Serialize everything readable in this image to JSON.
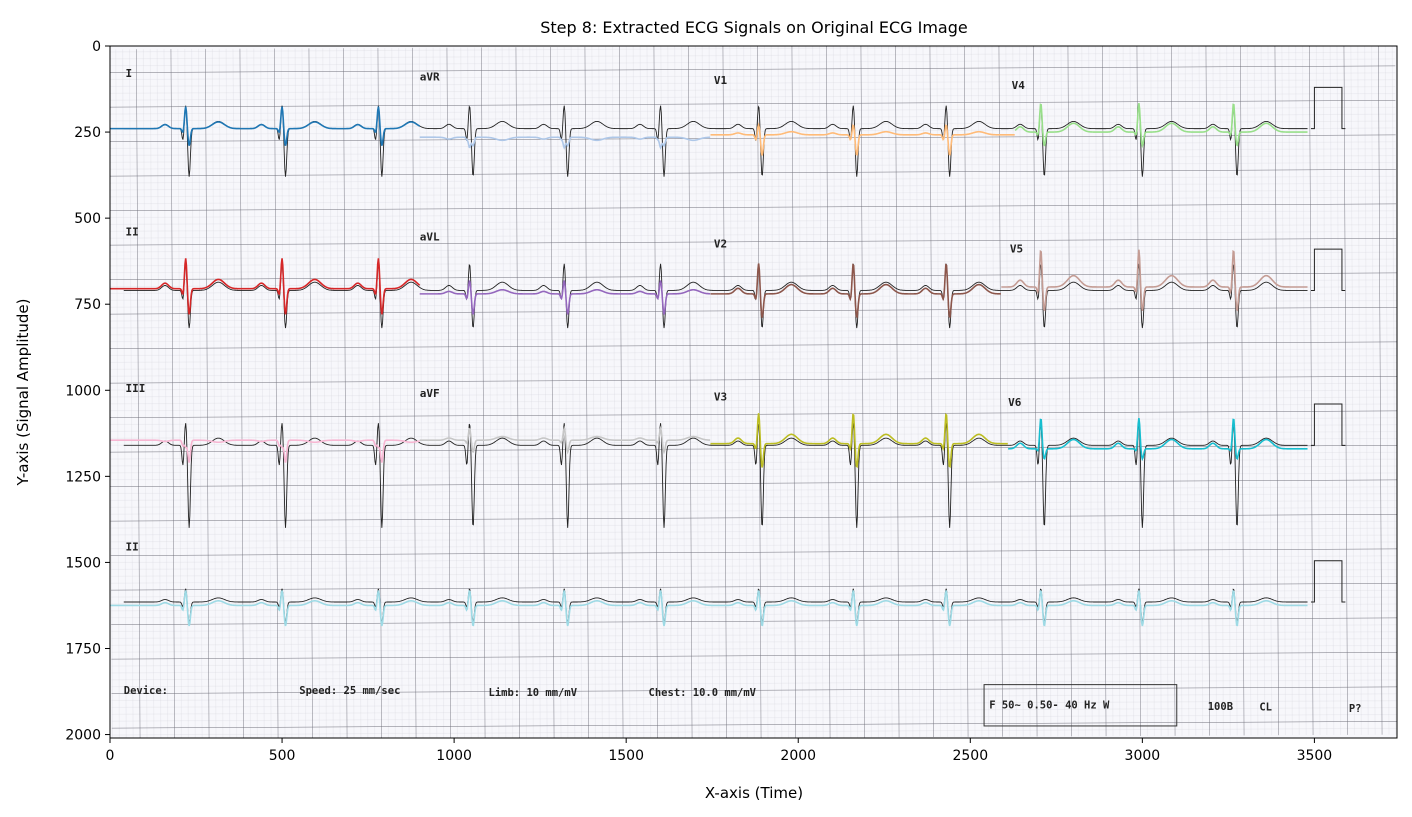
{
  "chart_data": {
    "type": "line",
    "title": "Step 8: Extracted ECG Signals on Original ECG Image",
    "xlabel": "X-axis (Time)",
    "ylabel": "Y-axis (Signal Amplitude)",
    "xlim": [
      0,
      3740
    ],
    "ylim": [
      2010,
      0
    ],
    "y_inverted": true,
    "xticks": [
      0,
      500,
      1000,
      1500,
      2000,
      2500,
      3000,
      3500
    ],
    "yticks": [
      0,
      250,
      500,
      750,
      1000,
      1250,
      1500,
      1750,
      2000
    ],
    "grid": false,
    "background_image": "scanned-ecg-paper",
    "lead_labels": [
      {
        "text": "I",
        "x": 45,
        "y": 90
      },
      {
        "text": "aVR",
        "x": 900,
        "y": 100
      },
      {
        "text": "V1",
        "x": 1755,
        "y": 110
      },
      {
        "text": "V4",
        "x": 2620,
        "y": 125
      },
      {
        "text": "II",
        "x": 45,
        "y": 550
      },
      {
        "text": "aVL",
        "x": 900,
        "y": 565
      },
      {
        "text": "V2",
        "x": 1755,
        "y": 585
      },
      {
        "text": "V5",
        "x": 2615,
        "y": 600
      },
      {
        "text": "III",
        "x": 45,
        "y": 1005
      },
      {
        "text": "aVF",
        "x": 900,
        "y": 1020
      },
      {
        "text": "V3",
        "x": 1755,
        "y": 1030
      },
      {
        "text": "V6",
        "x": 2610,
        "y": 1045
      },
      {
        "text": "II",
        "x": 45,
        "y": 1465
      }
    ],
    "footer_text": [
      {
        "text": "Device:",
        "x": 40,
        "y": 1882
      },
      {
        "text": "Speed: 25 mm/sec",
        "x": 550,
        "y": 1882
      },
      {
        "text": "Limb: 10 mm/mV",
        "x": 1100,
        "y": 1888
      },
      {
        "text": "Chest: 10.0 mm/mV",
        "x": 1565,
        "y": 1888
      },
      {
        "text": "F 50~ 0.50- 40 Hz W",
        "x": 2555,
        "y": 1925
      },
      {
        "text": "100B",
        "x": 3190,
        "y": 1928
      },
      {
        "text": "CL",
        "x": 3340,
        "y": 1930
      },
      {
        "text": "P?",
        "x": 3600,
        "y": 1935
      }
    ],
    "series": [
      {
        "color": "#1f77b4",
        "x_range": [
          0,
          900
        ],
        "baseline": 240,
        "beats": [
          220,
          500,
          780
        ],
        "r_amp": 65,
        "s_amp": 50
      },
      {
        "color": "#aec7e8",
        "x_range": [
          900,
          1745
        ],
        "baseline": 265,
        "beats": [
          1045,
          1320,
          1600
        ],
        "r_amp": -30,
        "s_amp": 25
      },
      {
        "color": "#ffbb78",
        "x_range": [
          1745,
          2630
        ],
        "baseline": 258,
        "beats": [
          1885,
          2160,
          2430
        ],
        "r_amp": 30,
        "s_amp": 60
      },
      {
        "color": "#98df8a",
        "x_range": [
          2630,
          3480
        ],
        "baseline": 250,
        "beats": [
          2705,
          2990,
          3265
        ],
        "r_amp": 85,
        "s_amp": 40
      },
      {
        "color": "#d62728",
        "x_range": [
          0,
          900
        ],
        "baseline": 705,
        "beats": [
          220,
          500,
          780
        ],
        "r_amp": 90,
        "s_amp": 75
      },
      {
        "color": "#9467bd",
        "x_range": [
          900,
          1745
        ],
        "baseline": 720,
        "beats": [
          1045,
          1320,
          1600
        ],
        "r_amp": 40,
        "s_amp": 60
      },
      {
        "color": "#8c564b",
        "x_range": [
          1745,
          2590
        ],
        "baseline": 720,
        "beats": [
          1885,
          2160,
          2430
        ],
        "r_amp": 90,
        "s_amp": 70
      },
      {
        "color": "#c49c94",
        "x_range": [
          2590,
          3480
        ],
        "baseline": 700,
        "beats": [
          2705,
          2990,
          3265
        ],
        "r_amp": 110,
        "s_amp": 70
      },
      {
        "color": "#f7b6d2",
        "x_range": [
          0,
          900
        ],
        "baseline": 1145,
        "beats": [
          220,
          500,
          780
        ],
        "r_amp": -20,
        "s_amp": 65
      },
      {
        "color": "#c7c7c7",
        "x_range": [
          900,
          1745
        ],
        "baseline": 1145,
        "beats": [
          1045,
          1320,
          1600
        ],
        "r_amp": 35,
        "s_amp": 35
      },
      {
        "color": "#bcbd22",
        "x_range": [
          1745,
          2610
        ],
        "baseline": 1155,
        "beats": [
          1885,
          2160,
          2430
        ],
        "r_amp": 90,
        "s_amp": 70
      },
      {
        "color": "#17becf",
        "x_range": [
          2610,
          3480
        ],
        "baseline": 1170,
        "beats": [
          2705,
          2990,
          3265
        ],
        "r_amp": 90,
        "s_amp": 30
      },
      {
        "color": "#9edae5",
        "x_range": [
          0,
          3480
        ],
        "baseline": 1625,
        "beats": [
          220,
          500,
          780,
          1045,
          1320,
          1600,
          1885,
          2160,
          2430,
          2705,
          2990,
          3265
        ],
        "r_amp": 45,
        "s_amp": 60
      }
    ],
    "original_trace": {
      "color": "#222222",
      "rows": [
        {
          "baseline": 240,
          "x_range": [
            40,
            3480
          ],
          "r_amp": 70,
          "s_amp": 140
        },
        {
          "baseline": 710,
          "x_range": [
            40,
            3480
          ],
          "r_amp": 80,
          "s_amp": 110
        },
        {
          "baseline": 1160,
          "x_range": [
            40,
            3480
          ],
          "r_amp": 70,
          "s_amp": 240
        },
        {
          "baseline": 1615,
          "x_range": [
            40,
            3480
          ],
          "r_amp": 40,
          "s_amp": 60
        }
      ],
      "beats": [
        220,
        500,
        780,
        1045,
        1320,
        1600,
        1885,
        2160,
        2430,
        2705,
        2990,
        3265
      ]
    }
  }
}
